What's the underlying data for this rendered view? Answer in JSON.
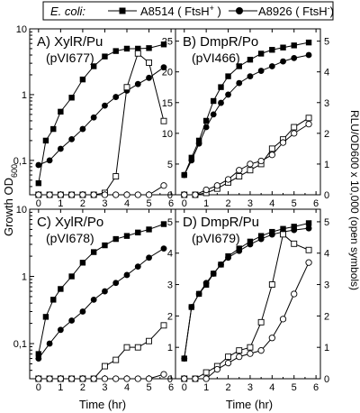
{
  "legend": {
    "prefix": "E. coli:",
    "items": [
      {
        "strain": "A8514",
        "genotype": "FtsH",
        "sign": "+",
        "marker": "square"
      },
      {
        "strain": "A8926",
        "genotype": "FtsH",
        "sign": "-",
        "marker": "circle"
      }
    ]
  },
  "axes": {
    "x_label": "Time (hr)",
    "y_left_label": "Growth OD",
    "y_left_subscript": "600",
    "y_right_label": "RLU/OD600 x 10,000 (open symbols)",
    "x_ticks": [
      "0",
      "1",
      "2",
      "3",
      "4",
      "5",
      "6"
    ],
    "y_left_ticks": [
      "0,1",
      "1",
      "10"
    ],
    "y_right_ticks_panels_ab": [
      "0",
      "5",
      "10",
      "15",
      "20",
      "25"
    ],
    "y_right2_ticks": [
      "0",
      "1",
      "2",
      "3",
      "4",
      "5"
    ]
  },
  "chart_data": [
    {
      "type": "line",
      "panel": "A",
      "title": "A) XylR/Pu",
      "subtitle": "(pVI677)",
      "x_range": [
        -0.4,
        6.2
      ],
      "growth_ylim": [
        0.03,
        10
      ],
      "growth_scale": "log",
      "rlu_ylim": [
        0,
        27
      ],
      "series": [
        {
          "name": "A8514 (FtsH+) growth",
          "marker": "filled-square",
          "x": [
            0,
            0.33,
            0.67,
            1,
            1.5,
            2,
            2.5,
            3,
            3.5,
            4,
            4.5,
            5,
            5.67
          ],
          "y": [
            0.045,
            0.2,
            0.3,
            0.55,
            0.9,
            1.7,
            2.7,
            3.8,
            4.6,
            5,
            5,
            5.1,
            5.8
          ]
        },
        {
          "name": "A8926 (FtsH-) growth",
          "marker": "filled-circle",
          "x": [
            0,
            0.5,
            1,
            1.5,
            2,
            2.5,
            3,
            3.5,
            4,
            4.5,
            5,
            5.67
          ],
          "y": [
            0.085,
            0.1,
            0.15,
            0.21,
            0.3,
            0.45,
            0.68,
            0.92,
            1.15,
            1.45,
            1.8,
            2.6
          ]
        },
        {
          "name": "A8514 (FtsH+) RLU",
          "marker": "open-square",
          "x": [
            0,
            0.5,
            1,
            1.5,
            2,
            2.5,
            3,
            3.5,
            4,
            4.5,
            5,
            5.67
          ],
          "y": [
            0,
            0,
            0,
            0,
            0,
            0,
            0.3,
            3,
            17.5,
            23,
            21.5,
            12
          ]
        },
        {
          "name": "A8926 (FtsH-) RLU",
          "marker": "open-circle",
          "x": [
            0,
            0.5,
            1,
            1.5,
            2,
            2.5,
            3,
            3.5,
            4,
            4.5,
            5,
            5.67
          ],
          "y": [
            0,
            0,
            0,
            0,
            0,
            0,
            0,
            0,
            0,
            0,
            0,
            1.5
          ]
        }
      ]
    },
    {
      "type": "line",
      "panel": "B",
      "title": "B) DmpR/Po",
      "subtitle": "(pVI466)",
      "x_range": [
        -0.4,
        6.2
      ],
      "growth_ylim": [
        0.03,
        10
      ],
      "growth_scale": "log",
      "rlu_ylim": [
        0,
        27
      ],
      "series": [
        {
          "name": "A8514 (FtsH+) growth",
          "marker": "filled-square",
          "x": [
            0,
            0.33,
            0.67,
            1,
            1.33,
            1.67,
            2,
            2.5,
            3,
            3.5,
            4,
            4.5,
            5,
            5.67
          ],
          "y": [
            0.06,
            0.11,
            0.2,
            0.4,
            0.8,
            1.3,
            1.9,
            2.7,
            3.4,
            4.2,
            4.8,
            5.2,
            5.6,
            6.2
          ]
        },
        {
          "name": "A8926 (FtsH-) growth",
          "marker": "filled-circle",
          "x": [
            0,
            0.33,
            0.67,
            1,
            1.33,
            1.67,
            2,
            2.5,
            3,
            3.5,
            4,
            4.5,
            5,
            5.67
          ],
          "y": [
            0.06,
            0.1,
            0.18,
            0.32,
            0.5,
            0.75,
            1.0,
            1.5,
            1.9,
            2.3,
            2.7,
            3.2,
            3.6,
            4.0
          ]
        },
        {
          "name": "A8514 (FtsH+) RLU",
          "marker": "open-square",
          "x": [
            0,
            0.5,
            1,
            1.5,
            2,
            2.5,
            3,
            3.5,
            4,
            4.5,
            5,
            5.67
          ],
          "y": [
            0,
            0,
            0.3,
            1,
            2,
            3,
            4,
            5,
            7.5,
            9,
            11,
            12.5
          ]
        },
        {
          "name": "A8926 (FtsH-) RLU",
          "marker": "open-circle",
          "x": [
            0,
            0.5,
            1,
            1.5,
            2,
            2.5,
            3,
            3.5,
            4,
            4.5,
            5,
            5.67
          ],
          "y": [
            0,
            0,
            0.8,
            1.5,
            2.5,
            4,
            5,
            5.5,
            6.5,
            8.5,
            10,
            11.5
          ]
        }
      ]
    },
    {
      "type": "line",
      "panel": "C",
      "title": "C) XylR/Po",
      "subtitle": "(pVI678)",
      "x_range": [
        -0.4,
        6.2
      ],
      "growth_ylim": [
        0.03,
        10
      ],
      "growth_scale": "log",
      "rlu_ylim": [
        0,
        27
      ],
      "series": [
        {
          "name": "A8514 (FtsH+) growth",
          "marker": "filled-square",
          "x": [
            0,
            0.33,
            0.67,
            1,
            1.5,
            2,
            2.5,
            3,
            3.5,
            4,
            4.5,
            5,
            5.67
          ],
          "y": [
            0.07,
            0.25,
            0.45,
            0.65,
            1.0,
            1.6,
            2.3,
            2.9,
            3.6,
            4.0,
            4.5,
            5.0,
            6.0
          ]
        },
        {
          "name": "A8926 (FtsH-) growth",
          "marker": "filled-circle",
          "x": [
            0,
            0.5,
            1,
            1.5,
            2,
            2.5,
            3,
            3.5,
            4,
            4.5,
            5,
            5.67
          ],
          "y": [
            0.06,
            0.1,
            0.16,
            0.22,
            0.3,
            0.45,
            0.6,
            0.8,
            1.05,
            1.4,
            1.9,
            2.6
          ]
        },
        {
          "name": "A8514 (FtsH+) RLU",
          "marker": "open-square",
          "x": [
            0,
            0.5,
            1,
            1.5,
            2,
            2.5,
            3,
            3.5,
            4,
            4.5,
            5,
            5.67
          ],
          "y": [
            0,
            0,
            0,
            0,
            0,
            0,
            2,
            3,
            5,
            5,
            6,
            8.5
          ]
        },
        {
          "name": "A8926 (FtsH-) RLU",
          "marker": "open-circle",
          "x": [
            0,
            0.5,
            1,
            1.5,
            2,
            2.5,
            3,
            3.5,
            4,
            4.5,
            5,
            5.67
          ],
          "y": [
            0,
            0,
            0,
            0,
            0,
            0,
            0,
            0,
            0,
            0,
            0,
            0.7
          ]
        }
      ]
    },
    {
      "type": "line",
      "panel": "D",
      "title": "D) DmpR/Pu",
      "subtitle": "(pVI679)",
      "x_range": [
        -0.4,
        6.2
      ],
      "growth_ylim": [
        0.03,
        10
      ],
      "growth_scale": "log",
      "rlu_ylim": [
        0,
        5.4
      ],
      "series": [
        {
          "name": "A8514 (FtsH+) growth",
          "marker": "filled-square",
          "x": [
            0,
            0.33,
            0.67,
            1,
            1.33,
            1.67,
            2,
            2.5,
            3,
            3.5,
            4,
            4.5,
            5,
            5.67
          ],
          "y": [
            0.06,
            0.35,
            0.55,
            0.75,
            1.1,
            1.5,
            2.0,
            2.6,
            3.3,
            4.0,
            4.6,
            5.1,
            5.5,
            6.2
          ]
        },
        {
          "name": "A8926 (FtsH-) growth",
          "marker": "filled-circle",
          "x": [
            0,
            0.33,
            0.67,
            1,
            1.33,
            1.67,
            2,
            2.5,
            3,
            3.5,
            4,
            4.5,
            5,
            5.67
          ],
          "y": [
            0.06,
            0.35,
            0.55,
            0.8,
            1.1,
            1.5,
            1.9,
            2.4,
            3.0,
            3.6,
            4.2,
            4.6,
            4.9,
            5.2
          ]
        },
        {
          "name": "A8514 (FtsH+) RLU",
          "marker": "open-square",
          "x": [
            0,
            0.5,
            1,
            1.5,
            2,
            2.5,
            3,
            3.5,
            4,
            4.5,
            5,
            5.67
          ],
          "y": [
            0,
            0,
            0.2,
            0.4,
            0.7,
            0.9,
            1.0,
            1.8,
            3.0,
            4.6,
            4.3,
            4.1
          ]
        },
        {
          "name": "A8926 (FtsH-) RLU",
          "marker": "open-circle",
          "x": [
            0,
            0.5,
            1,
            1.5,
            2,
            2.5,
            3,
            3.5,
            4,
            4.5,
            5,
            5.67
          ],
          "y": [
            0,
            0,
            0,
            0.3,
            0.5,
            0.7,
            0.8,
            0.9,
            1.3,
            1.9,
            2.7,
            3.7
          ]
        }
      ]
    }
  ]
}
